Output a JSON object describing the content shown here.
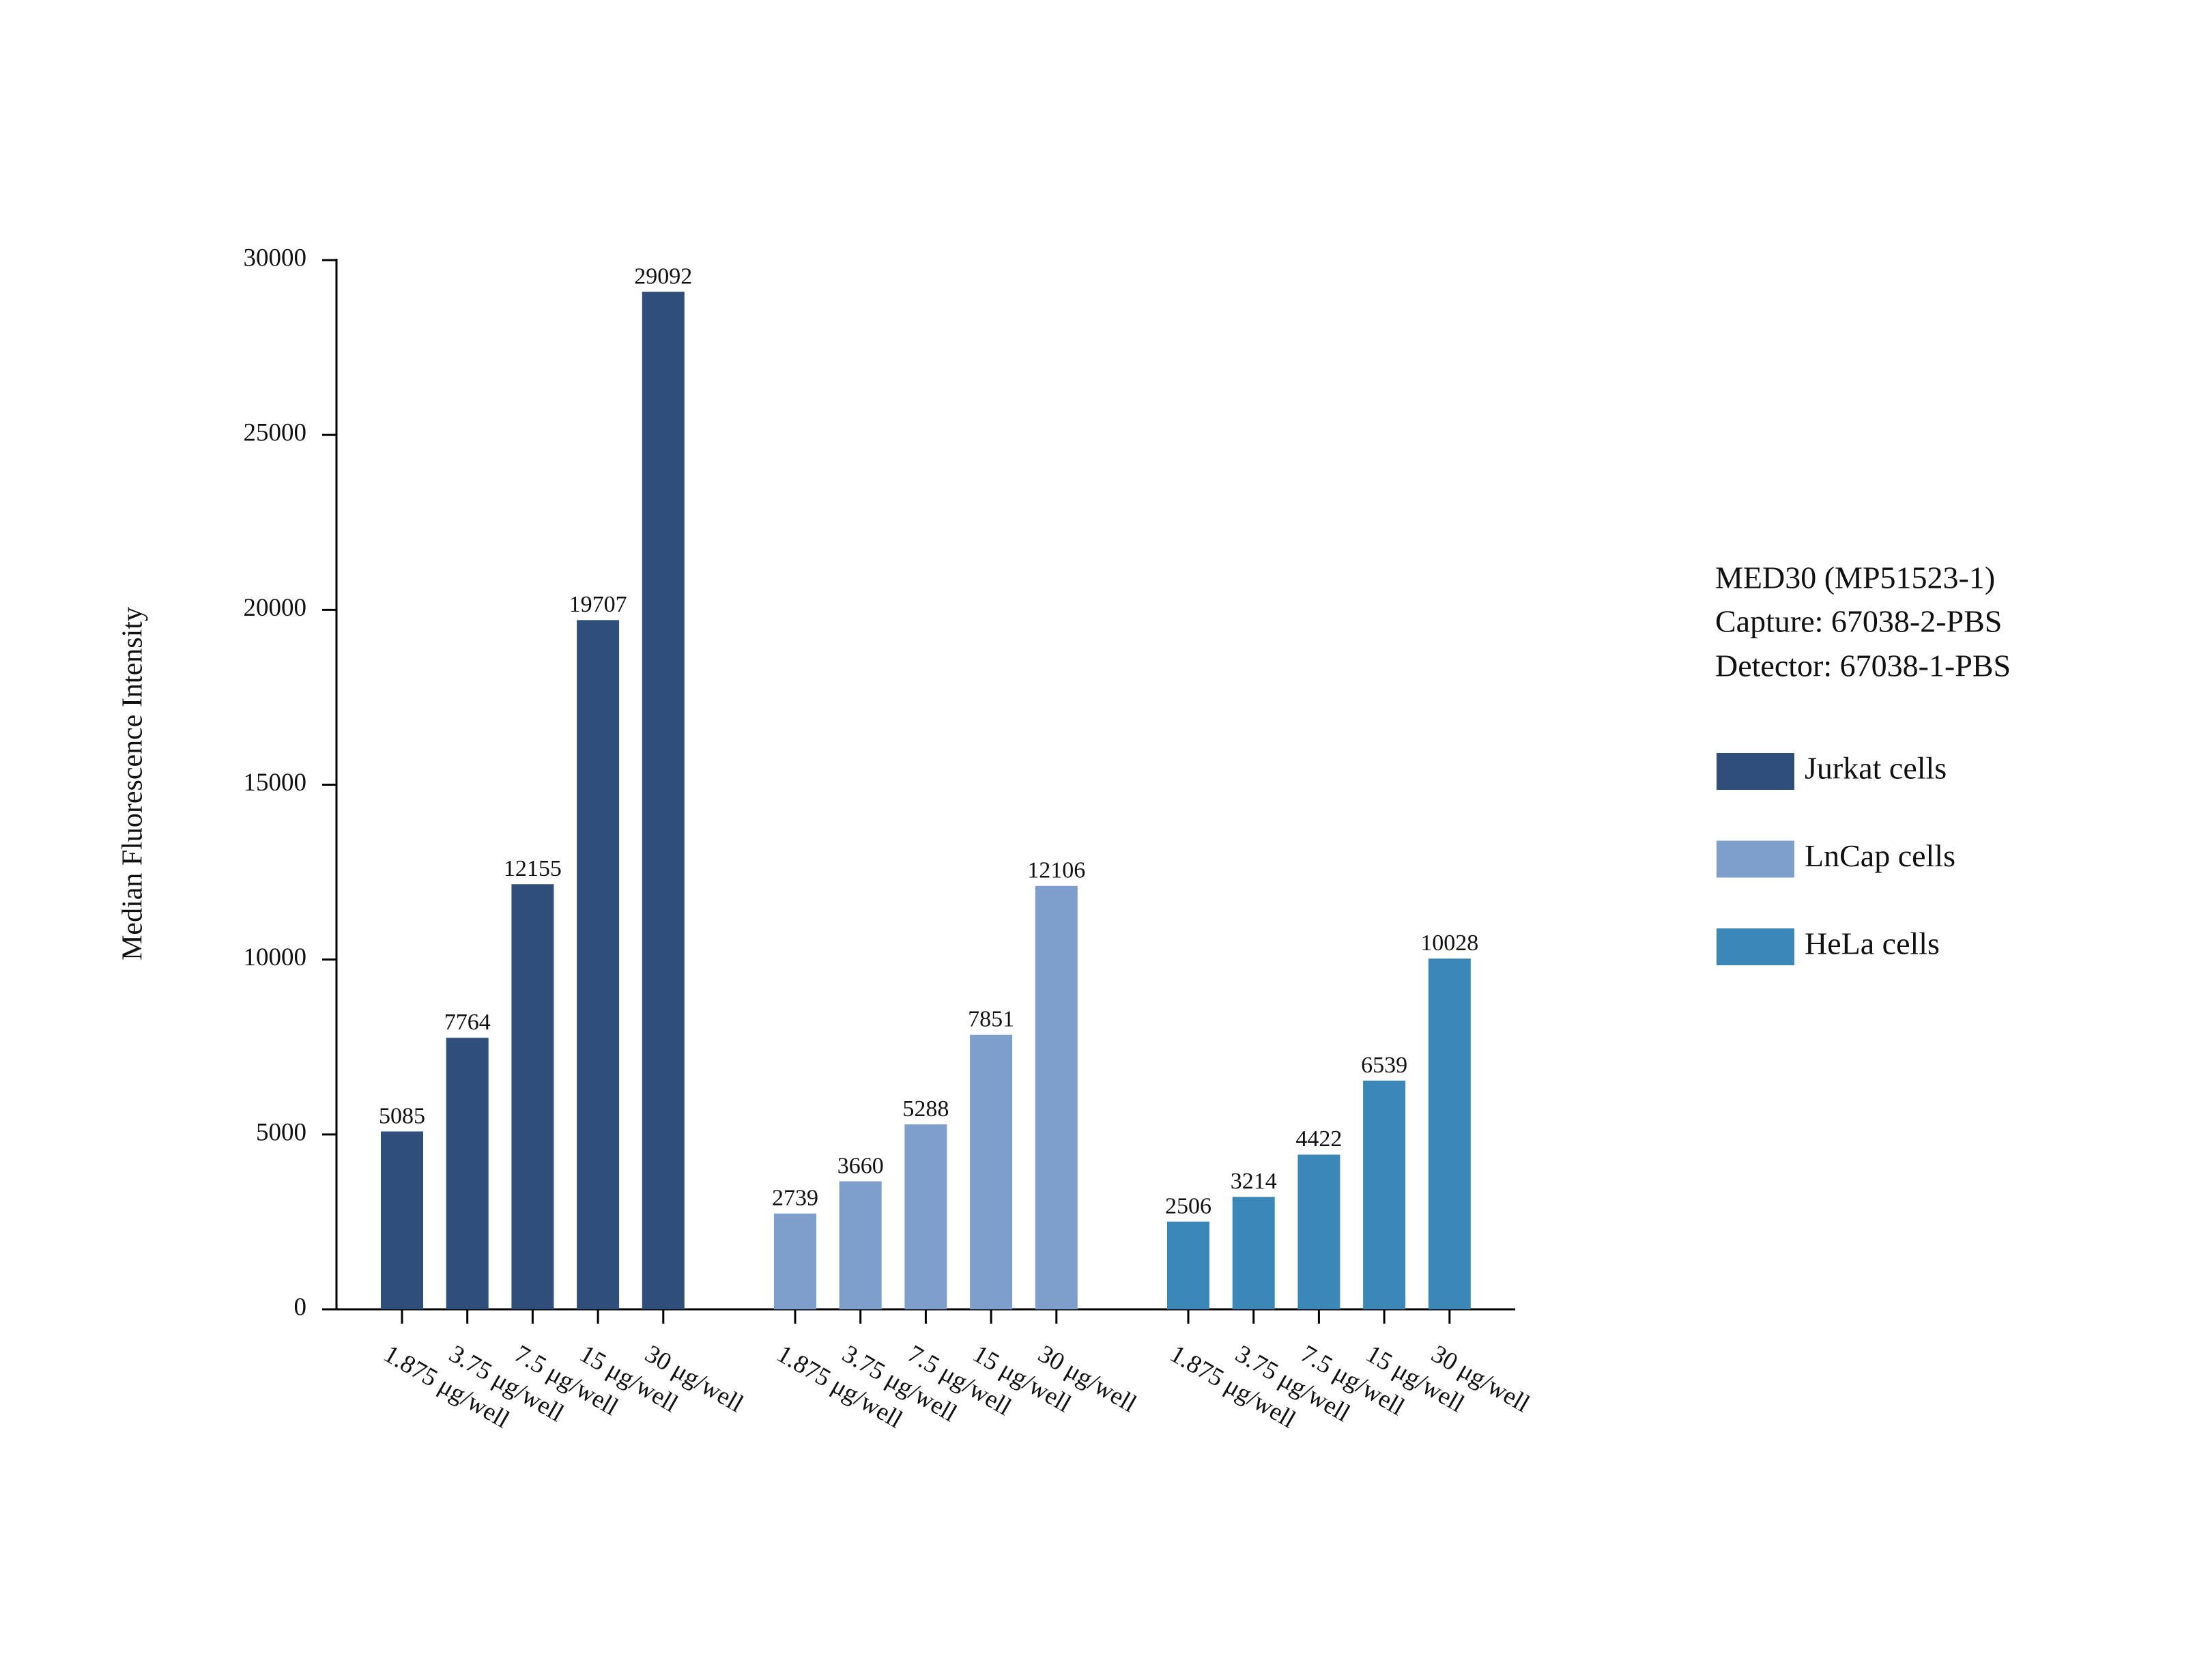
{
  "chart_data": {
    "type": "grouped_bar",
    "y_label": "Median Fluorescence Intensity",
    "annotation": [
      "MED30 (MP51523-1)",
      "Capture: 67038-2-PBS",
      "Detector: 67038-1-PBS"
    ],
    "categories": [
      "1.875 μg/well",
      "3.75 μg/well",
      "7.5 μg/well",
      "15 μg/well",
      "30 μg/well"
    ],
    "series": [
      {
        "name": "Jurkat cells",
        "color": "#2f4f7a",
        "values": [
          5085,
          7764,
          12155,
          19707,
          29092
        ]
      },
      {
        "name": "LnCap cells",
        "color": "#7e9fcc",
        "values": [
          2739,
          3660,
          5288,
          7851,
          12106
        ]
      },
      {
        "name": "HeLa cells",
        "color": "#3b87b8",
        "values": [
          2506,
          3214,
          4422,
          6539,
          10028
        ]
      }
    ],
    "ylim": [
      0,
      30000
    ],
    "yticks": [
      0,
      5000,
      10000,
      15000,
      20000,
      25000,
      30000
    ],
    "legend": "right"
  }
}
